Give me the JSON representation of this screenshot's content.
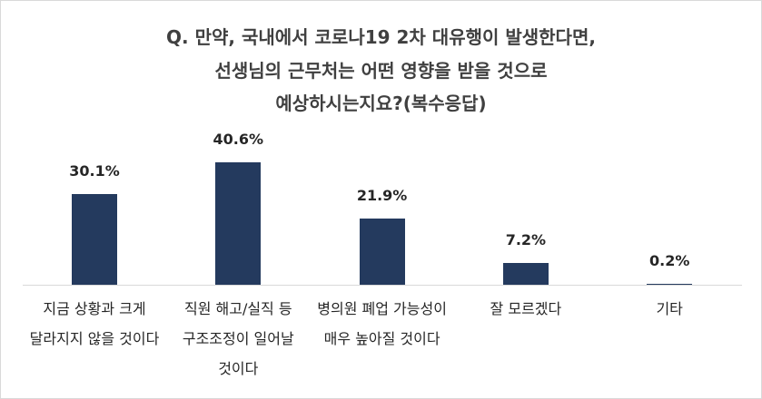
{
  "chart_data": {
    "type": "bar",
    "title": [
      "Q. 만약, 국내에서 코로나19 2차 대유행이 발생한다면,",
      "선생님의 근무처는 어떤 영향을 받을 것으로",
      "예상하시는지요?(복수응답)"
    ],
    "categories": [
      "지금 상황과 크게 달라지지 않을 것이다",
      "직원 해고/실직 등 구조조정이 일어날 것이다",
      "병의원 폐업 가능성이 매우 높아질 것이다",
      "잘 모르겠다",
      "기타"
    ],
    "values": [
      30.1,
      40.6,
      21.9,
      7.2,
      0.2
    ],
    "value_labels": [
      "30.1%",
      "40.6%",
      "21.9%",
      "7.2%",
      "0.2%"
    ],
    "color": "#243a5e"
  }
}
